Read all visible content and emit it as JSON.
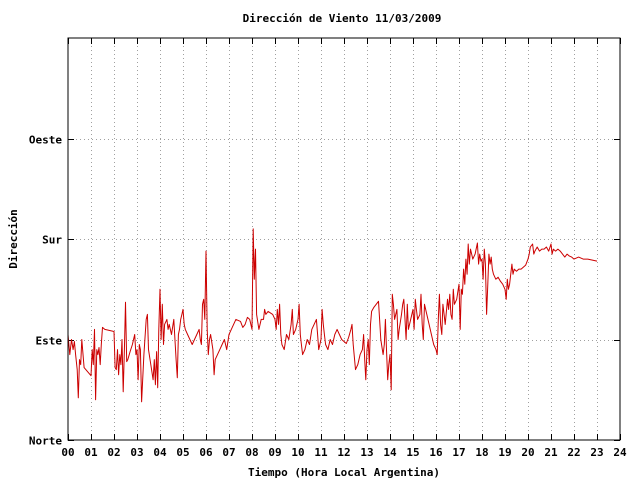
{
  "chart_data": {
    "type": "line",
    "title": "Dirección de Viento 11/03/2009",
    "xlabel": "Tiempo (Hora Local Argentina)",
    "ylabel": "Dirección",
    "xlim": [
      0,
      24
    ],
    "ylim": [
      0,
      4
    ],
    "x_ticks": [
      "00",
      "01",
      "02",
      "03",
      "04",
      "05",
      "06",
      "07",
      "08",
      "09",
      "10",
      "11",
      "12",
      "13",
      "14",
      "15",
      "16",
      "17",
      "18",
      "19",
      "20",
      "21",
      "22",
      "23",
      "24"
    ],
    "y_ticks": [
      {
        "value": 0,
        "label": "Norte"
      },
      {
        "value": 1,
        "label": "Este"
      },
      {
        "value": 2,
        "label": "Sur"
      },
      {
        "value": 3,
        "label": "Oeste"
      }
    ],
    "grid": true,
    "line_color": "#cc0000",
    "series": [
      {
        "name": "",
        "points": [
          [
            0.0,
            1.05
          ],
          [
            0.08,
            0.85
          ],
          [
            0.15,
            1.0
          ],
          [
            0.22,
            0.9
          ],
          [
            0.28,
            0.98
          ],
          [
            0.33,
            0.85
          ],
          [
            0.4,
            0.7
          ],
          [
            0.45,
            0.42
          ],
          [
            0.5,
            0.8
          ],
          [
            0.55,
            0.75
          ],
          [
            0.6,
            1.0
          ],
          [
            0.7,
            0.72
          ],
          [
            1.0,
            0.64
          ],
          [
            1.05,
            0.9
          ],
          [
            1.1,
            0.75
          ],
          [
            1.15,
            1.1
          ],
          [
            1.2,
            0.4
          ],
          [
            1.25,
            0.9
          ],
          [
            1.3,
            0.85
          ],
          [
            1.35,
            0.92
          ],
          [
            1.4,
            0.75
          ],
          [
            1.45,
            0.95
          ],
          [
            1.5,
            1.12
          ],
          [
            1.6,
            1.1
          ],
          [
            2.0,
            1.08
          ],
          [
            2.05,
            0.72
          ],
          [
            2.1,
            0.7
          ],
          [
            2.15,
            0.9
          ],
          [
            2.2,
            0.65
          ],
          [
            2.25,
            0.85
          ],
          [
            2.3,
            0.75
          ],
          [
            2.35,
            1.0
          ],
          [
            2.4,
            0.48
          ],
          [
            2.45,
            0.9
          ],
          [
            2.5,
            1.37
          ],
          [
            2.55,
            0.78
          ],
          [
            2.6,
            0.8
          ],
          [
            2.7,
            0.88
          ],
          [
            2.8,
            0.95
          ],
          [
            2.9,
            1.05
          ],
          [
            2.95,
            0.85
          ],
          [
            3.0,
            0.9
          ],
          [
            3.05,
            0.6
          ],
          [
            3.1,
            0.95
          ],
          [
            3.15,
            0.9
          ],
          [
            3.2,
            0.38
          ],
          [
            3.3,
            0.85
          ],
          [
            3.4,
            1.2
          ],
          [
            3.45,
            1.25
          ],
          [
            3.5,
            0.9
          ],
          [
            3.6,
            0.75
          ],
          [
            3.7,
            0.6
          ],
          [
            3.75,
            0.8
          ],
          [
            3.8,
            0.55
          ],
          [
            3.85,
            0.88
          ],
          [
            3.9,
            0.52
          ],
          [
            3.95,
            1.1
          ],
          [
            4.0,
            1.5
          ],
          [
            4.05,
            1.0
          ],
          [
            4.1,
            1.35
          ],
          [
            4.15,
            0.95
          ],
          [
            4.2,
            1.15
          ],
          [
            4.3,
            1.2
          ],
          [
            4.35,
            1.1
          ],
          [
            4.4,
            1.15
          ],
          [
            4.5,
            1.05
          ],
          [
            4.6,
            1.2
          ],
          [
            4.7,
            0.8
          ],
          [
            4.75,
            0.62
          ],
          [
            4.8,
            1.05
          ],
          [
            4.85,
            1.1
          ],
          [
            4.9,
            1.2
          ],
          [
            4.95,
            1.25
          ],
          [
            5.0,
            1.3
          ],
          [
            5.05,
            1.15
          ],
          [
            5.1,
            1.1
          ],
          [
            5.2,
            1.05
          ],
          [
            5.3,
            1.0
          ],
          [
            5.4,
            0.95
          ],
          [
            5.5,
            1.0
          ],
          [
            5.6,
            1.05
          ],
          [
            5.7,
            1.1
          ],
          [
            5.75,
            1.0
          ],
          [
            5.8,
            0.95
          ],
          [
            5.85,
            1.35
          ],
          [
            5.9,
            1.4
          ],
          [
            5.95,
            1.2
          ],
          [
            6.0,
            1.88
          ],
          [
            6.05,
            1.1
          ],
          [
            6.1,
            0.85
          ],
          [
            6.15,
            1.0
          ],
          [
            6.2,
            1.05
          ],
          [
            6.3,
            0.9
          ],
          [
            6.35,
            0.65
          ],
          [
            6.4,
            0.8
          ],
          [
            6.5,
            0.85
          ],
          [
            6.6,
            0.9
          ],
          [
            6.7,
            0.95
          ],
          [
            6.8,
            1.0
          ],
          [
            6.9,
            0.9
          ],
          [
            7.0,
            1.05
          ],
          [
            7.1,
            1.1
          ],
          [
            7.2,
            1.15
          ],
          [
            7.3,
            1.2
          ],
          [
            7.5,
            1.18
          ],
          [
            7.6,
            1.12
          ],
          [
            7.7,
            1.15
          ],
          [
            7.8,
            1.22
          ],
          [
            7.9,
            1.2
          ],
          [
            8.0,
            1.1
          ],
          [
            8.05,
            2.1
          ],
          [
            8.1,
            1.6
          ],
          [
            8.15,
            1.9
          ],
          [
            8.2,
            1.25
          ],
          [
            8.3,
            1.1
          ],
          [
            8.4,
            1.2
          ],
          [
            8.5,
            1.2
          ],
          [
            8.55,
            1.3
          ],
          [
            8.6,
            1.25
          ],
          [
            8.7,
            1.28
          ],
          [
            8.9,
            1.25
          ],
          [
            9.0,
            1.2
          ],
          [
            9.05,
            1.1
          ],
          [
            9.1,
            1.3
          ],
          [
            9.15,
            1.15
          ],
          [
            9.2,
            1.35
          ],
          [
            9.25,
            1.05
          ],
          [
            9.3,
            0.95
          ],
          [
            9.4,
            0.9
          ],
          [
            9.5,
            1.05
          ],
          [
            9.6,
            1.0
          ],
          [
            9.7,
            1.15
          ],
          [
            9.75,
            1.3
          ],
          [
            9.8,
            1.05
          ],
          [
            9.9,
            1.1
          ],
          [
            10.0,
            1.2
          ],
          [
            10.05,
            1.35
          ],
          [
            10.1,
            1.05
          ],
          [
            10.15,
            0.95
          ],
          [
            10.2,
            0.85
          ],
          [
            10.3,
            0.9
          ],
          [
            10.4,
            1.0
          ],
          [
            10.5,
            0.95
          ],
          [
            10.6,
            1.1
          ],
          [
            10.7,
            1.15
          ],
          [
            10.8,
            1.2
          ],
          [
            10.85,
            1.05
          ],
          [
            10.9,
            0.9
          ],
          [
            11.0,
            1.0
          ],
          [
            11.05,
            1.3
          ],
          [
            11.1,
            1.15
          ],
          [
            11.15,
            1.05
          ],
          [
            11.2,
            0.95
          ],
          [
            11.3,
            0.9
          ],
          [
            11.4,
            1.0
          ],
          [
            11.5,
            0.95
          ],
          [
            11.6,
            1.05
          ],
          [
            11.7,
            1.1
          ],
          [
            11.8,
            1.05
          ],
          [
            11.9,
            1.0
          ],
          [
            12.0,
            0.98
          ],
          [
            12.1,
            0.96
          ],
          [
            12.2,
            1.02
          ],
          [
            12.3,
            1.1
          ],
          [
            12.35,
            1.15
          ],
          [
            12.4,
            0.95
          ],
          [
            12.5,
            0.7
          ],
          [
            12.6,
            0.75
          ],
          [
            12.7,
            0.85
          ],
          [
            12.8,
            0.9
          ],
          [
            12.85,
            1.05
          ],
          [
            12.9,
            0.8
          ],
          [
            12.95,
            0.6
          ],
          [
            13.0,
            0.9
          ],
          [
            13.05,
            1.0
          ],
          [
            13.1,
            0.75
          ],
          [
            13.15,
            1.15
          ],
          [
            13.2,
            1.28
          ],
          [
            13.3,
            1.32
          ],
          [
            13.4,
            1.35
          ],
          [
            13.5,
            1.38
          ],
          [
            13.55,
            1.2
          ],
          [
            13.6,
            1.0
          ],
          [
            13.7,
            0.85
          ],
          [
            13.75,
            0.95
          ],
          [
            13.8,
            1.2
          ],
          [
            13.85,
            0.9
          ],
          [
            13.9,
            0.6
          ],
          [
            13.95,
            0.75
          ],
          [
            14.0,
            0.85
          ],
          [
            14.05,
            0.5
          ],
          [
            14.1,
            1.45
          ],
          [
            14.15,
            1.35
          ],
          [
            14.2,
            1.2
          ],
          [
            14.3,
            1.3
          ],
          [
            14.35,
            1.0
          ],
          [
            14.4,
            1.1
          ],
          [
            14.5,
            1.25
          ],
          [
            14.55,
            1.35
          ],
          [
            14.6,
            1.4
          ],
          [
            14.65,
            1.2
          ],
          [
            14.7,
            1.0
          ],
          [
            14.75,
            1.35
          ],
          [
            14.8,
            1.1
          ],
          [
            14.9,
            1.2
          ],
          [
            15.0,
            1.3
          ],
          [
            15.05,
            1.1
          ],
          [
            15.1,
            1.4
          ],
          [
            15.15,
            1.3
          ],
          [
            15.2,
            1.2
          ],
          [
            15.3,
            1.25
          ],
          [
            15.35,
            1.45
          ],
          [
            15.4,
            1.15
          ],
          [
            15.45,
            1.0
          ],
          [
            15.5,
            1.35
          ],
          [
            15.6,
            1.25
          ],
          [
            15.7,
            1.15
          ],
          [
            15.8,
            1.05
          ],
          [
            15.9,
            0.95
          ],
          [
            16.0,
            0.9
          ],
          [
            16.05,
            0.85
          ],
          [
            16.1,
            1.2
          ],
          [
            16.15,
            1.45
          ],
          [
            16.2,
            1.15
          ],
          [
            16.25,
            1.05
          ],
          [
            16.3,
            1.35
          ],
          [
            16.35,
            1.25
          ],
          [
            16.4,
            1.15
          ],
          [
            16.5,
            1.4
          ],
          [
            16.55,
            1.3
          ],
          [
            16.6,
            1.45
          ],
          [
            16.65,
            1.25
          ],
          [
            16.7,
            1.2
          ],
          [
            16.75,
            1.5
          ],
          [
            16.8,
            1.35
          ],
          [
            16.9,
            1.4
          ],
          [
            17.0,
            1.55
          ],
          [
            17.05,
            1.1
          ],
          [
            17.1,
            1.5
          ],
          [
            17.15,
            1.45
          ],
          [
            17.2,
            1.7
          ],
          [
            17.25,
            1.55
          ],
          [
            17.3,
            1.8
          ],
          [
            17.35,
            1.65
          ],
          [
            17.4,
            1.95
          ],
          [
            17.45,
            1.75
          ],
          [
            17.5,
            1.9
          ],
          [
            17.6,
            1.8
          ],
          [
            17.7,
            1.85
          ],
          [
            17.8,
            1.96
          ],
          [
            17.85,
            1.75
          ],
          [
            17.9,
            1.85
          ],
          [
            17.95,
            1.78
          ],
          [
            18.0,
            1.8
          ],
          [
            18.05,
            1.6
          ],
          [
            18.1,
            1.9
          ],
          [
            18.15,
            1.75
          ],
          [
            18.2,
            1.25
          ],
          [
            18.25,
            1.55
          ],
          [
            18.3,
            1.85
          ],
          [
            18.35,
            1.75
          ],
          [
            18.4,
            1.82
          ],
          [
            18.45,
            1.7
          ],
          [
            18.5,
            1.65
          ],
          [
            18.6,
            1.6
          ],
          [
            18.7,
            1.62
          ],
          [
            18.8,
            1.58
          ],
          [
            18.9,
            1.55
          ],
          [
            19.0,
            1.5
          ],
          [
            19.05,
            1.4
          ],
          [
            19.1,
            1.6
          ],
          [
            19.15,
            1.5
          ],
          [
            19.2,
            1.55
          ],
          [
            19.3,
            1.75
          ],
          [
            19.35,
            1.65
          ],
          [
            19.4,
            1.7
          ],
          [
            19.5,
            1.68
          ],
          [
            19.6,
            1.7
          ],
          [
            19.7,
            1.7
          ],
          [
            19.8,
            1.72
          ],
          [
            19.9,
            1.74
          ],
          [
            20.0,
            1.8
          ],
          [
            20.05,
            1.85
          ],
          [
            20.1,
            1.92
          ],
          [
            20.2,
            1.95
          ],
          [
            20.25,
            1.85
          ],
          [
            20.3,
            1.88
          ],
          [
            20.4,
            1.92
          ],
          [
            20.5,
            1.88
          ],
          [
            20.6,
            1.9
          ],
          [
            20.7,
            1.9
          ],
          [
            20.8,
            1.92
          ],
          [
            20.9,
            1.88
          ],
          [
            21.0,
            1.95
          ],
          [
            21.05,
            1.85
          ],
          [
            21.1,
            1.9
          ],
          [
            21.2,
            1.88
          ],
          [
            21.3,
            1.9
          ],
          [
            21.4,
            1.88
          ],
          [
            21.5,
            1.85
          ],
          [
            21.6,
            1.82
          ],
          [
            21.7,
            1.85
          ],
          [
            21.8,
            1.83
          ],
          [
            21.9,
            1.82
          ],
          [
            22.0,
            1.8
          ],
          [
            22.2,
            1.82
          ],
          [
            22.4,
            1.8
          ],
          [
            22.6,
            1.8
          ],
          [
            22.8,
            1.79
          ],
          [
            23.0,
            1.78
          ]
        ]
      }
    ]
  }
}
